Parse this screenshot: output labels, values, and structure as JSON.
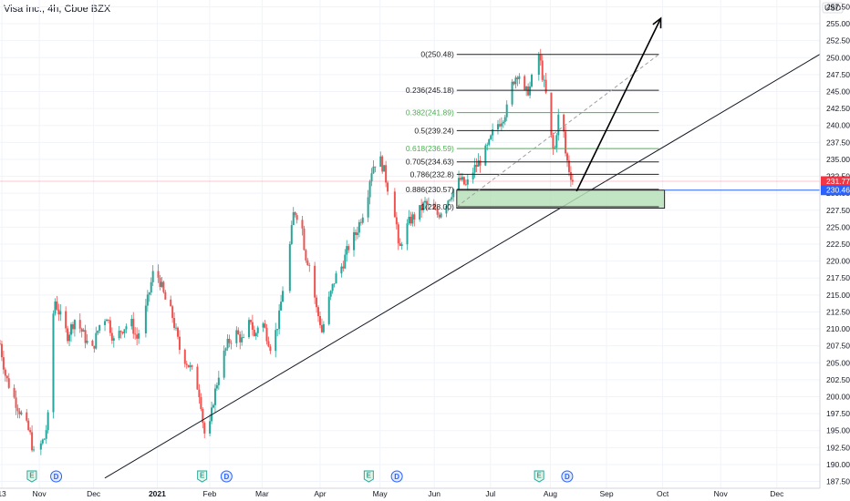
{
  "header": {
    "title": "Visa Inc., 4h, Cboe BZX"
  },
  "currency_label": "USD",
  "colors": {
    "up": "#26a69a",
    "down": "#ef5350",
    "price_tag": "#f23645",
    "target_tag": "#2962ff",
    "zone_fill": "#b7e1b9",
    "zone_border": "#222222",
    "fib_green": "#4caf50",
    "fib_black": "#222222",
    "grid": "#f0f3fa",
    "earnings_badge": "#26a69a",
    "dividend_badge": "#2962ff"
  },
  "chart_data": {
    "type": "candlestick",
    "title": "Visa Inc., 4h, Cboe BZX",
    "ylim": [
      186.5,
      258.5
    ],
    "xlim": [
      "2020-10-12",
      "2021-12-24"
    ],
    "y_ticks": [
      187.5,
      190.0,
      192.5,
      195.0,
      197.5,
      200.0,
      202.5,
      205.0,
      207.5,
      210.0,
      212.5,
      215.0,
      217.5,
      220.0,
      222.5,
      225.0,
      227.5,
      230.0,
      232.5,
      235.0,
      237.5,
      240.0,
      242.5,
      245.0,
      247.5,
      250.0,
      252.5,
      255.0,
      257.5
    ],
    "x_ticks": [
      {
        "label": "13",
        "date": "2020-10-13"
      },
      {
        "label": "Nov",
        "date": "2020-11-02"
      },
      {
        "label": "Dec",
        "date": "2020-12-01"
      },
      {
        "label": "2021",
        "date": "2021-01-04"
      },
      {
        "label": "Feb",
        "date": "2021-02-01"
      },
      {
        "label": "Mar",
        "date": "2021-03-01"
      },
      {
        "label": "Apr",
        "date": "2021-04-01"
      },
      {
        "label": "May",
        "date": "2021-05-03"
      },
      {
        "label": "Jun",
        "date": "2021-06-01"
      },
      {
        "label": "Jul",
        "date": "2021-07-01"
      },
      {
        "label": "Aug",
        "date": "2021-08-02"
      },
      {
        "label": "Sep",
        "date": "2021-09-01"
      },
      {
        "label": "Oct",
        "date": "2021-10-01"
      },
      {
        "label": "Nov",
        "date": "2021-11-01"
      },
      {
        "label": "Dec",
        "date": "2021-12-01"
      }
    ],
    "price_path": [
      [
        "2020-10-12",
        207.8
      ],
      [
        "2020-10-15",
        203.0
      ],
      [
        "2020-10-20",
        199.5
      ],
      [
        "2020-10-24",
        197.0
      ],
      [
        "2020-10-28",
        194.5
      ],
      [
        "2020-10-30",
        191.5
      ],
      [
        "2020-11-02",
        192.5
      ],
      [
        "2020-11-05",
        194.0
      ],
      [
        "2020-11-07",
        197.5
      ],
      [
        "2020-11-09",
        210.0
      ],
      [
        "2020-11-10",
        214.5
      ],
      [
        "2020-11-13",
        212.0
      ],
      [
        "2020-11-17",
        209.0
      ],
      [
        "2020-11-21",
        211.5
      ],
      [
        "2020-11-25",
        209.5
      ],
      [
        "2020-11-30",
        206.5
      ],
      [
        "2020-12-04",
        210.5
      ],
      [
        "2020-12-08",
        212.0
      ],
      [
        "2020-12-12",
        208.0
      ],
      [
        "2020-12-16",
        210.0
      ],
      [
        "2020-12-21",
        211.0
      ],
      [
        "2020-12-24",
        208.5
      ],
      [
        "2020-12-29",
        213.0
      ],
      [
        "2021-01-02",
        218.5
      ],
      [
        "2021-01-05",
        217.5
      ],
      [
        "2021-01-08",
        214.5
      ],
      [
        "2021-01-12",
        212.0
      ],
      [
        "2021-01-16",
        207.0
      ],
      [
        "2021-01-20",
        205.0
      ],
      [
        "2021-01-24",
        203.0
      ],
      [
        "2021-01-27",
        200.0
      ],
      [
        "2021-01-29",
        194.5
      ],
      [
        "2021-02-01",
        195.5
      ],
      [
        "2021-02-03",
        199.5
      ],
      [
        "2021-02-07",
        205.0
      ],
      [
        "2021-02-11",
        208.0
      ],
      [
        "2021-02-15",
        209.5
      ],
      [
        "2021-02-19",
        208.0
      ],
      [
        "2021-02-23",
        211.5
      ],
      [
        "2021-02-25",
        208.5
      ],
      [
        "2021-02-28",
        212.0
      ],
      [
        "2021-03-03",
        209.5
      ],
      [
        "2021-03-06",
        207.0
      ],
      [
        "2021-03-10",
        211.5
      ],
      [
        "2021-03-13",
        218.0
      ],
      [
        "2021-03-16",
        222.5
      ],
      [
        "2021-03-18",
        227.5
      ],
      [
        "2021-03-22",
        226.0
      ],
      [
        "2021-03-24",
        221.0
      ],
      [
        "2021-03-27",
        219.0
      ],
      [
        "2021-03-30",
        213.0
      ],
      [
        "2021-04-01",
        211.0
      ],
      [
        "2021-04-02",
        209.5
      ],
      [
        "2021-04-05",
        213.5
      ],
      [
        "2021-04-09",
        217.5
      ],
      [
        "2021-04-13",
        219.5
      ],
      [
        "2021-04-16",
        222.0
      ],
      [
        "2021-04-20",
        224.0
      ],
      [
        "2021-04-23",
        226.5
      ],
      [
        "2021-04-26",
        229.0
      ],
      [
        "2021-04-28",
        233.0
      ],
      [
        "2021-04-30",
        234.5
      ],
      [
        "2021-05-03",
        235.0
      ],
      [
        "2021-05-05",
        233.5
      ],
      [
        "2021-05-07",
        231.0
      ],
      [
        "2021-05-10",
        229.0
      ],
      [
        "2021-05-12",
        225.0
      ],
      [
        "2021-05-13",
        221.0
      ],
      [
        "2021-05-15",
        223.5
      ],
      [
        "2021-05-19",
        226.0
      ],
      [
        "2021-05-23",
        227.0
      ],
      [
        "2021-05-27",
        228.5
      ],
      [
        "2021-05-31",
        227.5
      ],
      [
        "2021-06-03",
        226.8
      ],
      [
        "2021-06-07",
        228.5
      ],
      [
        "2021-06-11",
        230.5
      ],
      [
        "2021-06-15",
        232.0
      ],
      [
        "2021-06-18",
        231.0
      ],
      [
        "2021-06-22",
        233.5
      ],
      [
        "2021-06-26",
        235.0
      ],
      [
        "2021-06-30",
        237.0
      ],
      [
        "2021-07-03",
        239.5
      ],
      [
        "2021-07-07",
        241.0
      ],
      [
        "2021-07-10",
        242.5
      ],
      [
        "2021-07-13",
        246.5
      ],
      [
        "2021-07-16",
        248.0
      ],
      [
        "2021-07-19",
        244.5
      ],
      [
        "2021-07-22",
        245.5
      ],
      [
        "2021-07-25",
        249.0
      ],
      [
        "2021-07-27",
        250.5
      ],
      [
        "2021-07-29",
        247.0
      ],
      [
        "2021-07-31",
        244.0
      ],
      [
        "2021-08-02",
        239.0
      ],
      [
        "2021-08-04",
        235.5
      ],
      [
        "2021-08-06",
        241.0
      ],
      [
        "2021-08-08",
        242.5
      ],
      [
        "2021-08-10",
        236.0
      ],
      [
        "2021-08-12",
        233.5
      ],
      [
        "2021-08-14",
        231.8
      ]
    ],
    "trendline": {
      "from": [
        "2020-12-07",
        188.0
      ],
      "to": [
        "2021-12-24",
        250.5
      ]
    },
    "arrow": {
      "from": [
        "2021-08-16",
        230.3
      ],
      "to": [
        "2021-09-30",
        255.8
      ]
    },
    "dashed_line": {
      "from": [
        "2021-06-13",
        228.0
      ],
      "to": [
        "2021-09-29",
        250.48
      ]
    },
    "fib_start": "2021-06-13",
    "fib_end": "2021-09-29",
    "fib_levels": [
      {
        "label": "0(250.48)",
        "price": 250.48,
        "style": "black"
      },
      {
        "label": "0.236(245.18)",
        "price": 245.18,
        "style": "black"
      },
      {
        "label": "0.382(241.89)",
        "price": 241.89,
        "style": "green"
      },
      {
        "label": "0.5(239.24)",
        "price": 239.24,
        "style": "black"
      },
      {
        "label": "0.618(236.59)",
        "price": 236.59,
        "style": "green"
      },
      {
        "label": "0.705(234.63)",
        "price": 234.63,
        "style": "black"
      },
      {
        "label": "0.786(232.8)",
        "price": 232.8,
        "style": "black"
      },
      {
        "label": "0.886(230.57)",
        "price": 230.57,
        "style": "black"
      },
      {
        "label": "1(228.00)",
        "price": 228.0,
        "style": "black"
      }
    ],
    "zone": {
      "from": "2021-06-13",
      "to": "2021-10-02",
      "top": 230.46,
      "bottom": 227.8
    },
    "last_price": {
      "value": 231.77,
      "label": "231.77"
    },
    "target_price": {
      "value": 230.46,
      "label": "230.46"
    },
    "events": [
      {
        "type": "E",
        "date": "2020-10-29"
      },
      {
        "type": "D",
        "date": "2020-11-11"
      },
      {
        "type": "E",
        "date": "2021-01-28"
      },
      {
        "type": "D",
        "date": "2021-02-10"
      },
      {
        "type": "E",
        "date": "2021-04-27"
      },
      {
        "type": "D",
        "date": "2021-05-12"
      },
      {
        "type": "E",
        "date": "2021-07-27"
      },
      {
        "type": "D",
        "date": "2021-08-11"
      }
    ]
  }
}
